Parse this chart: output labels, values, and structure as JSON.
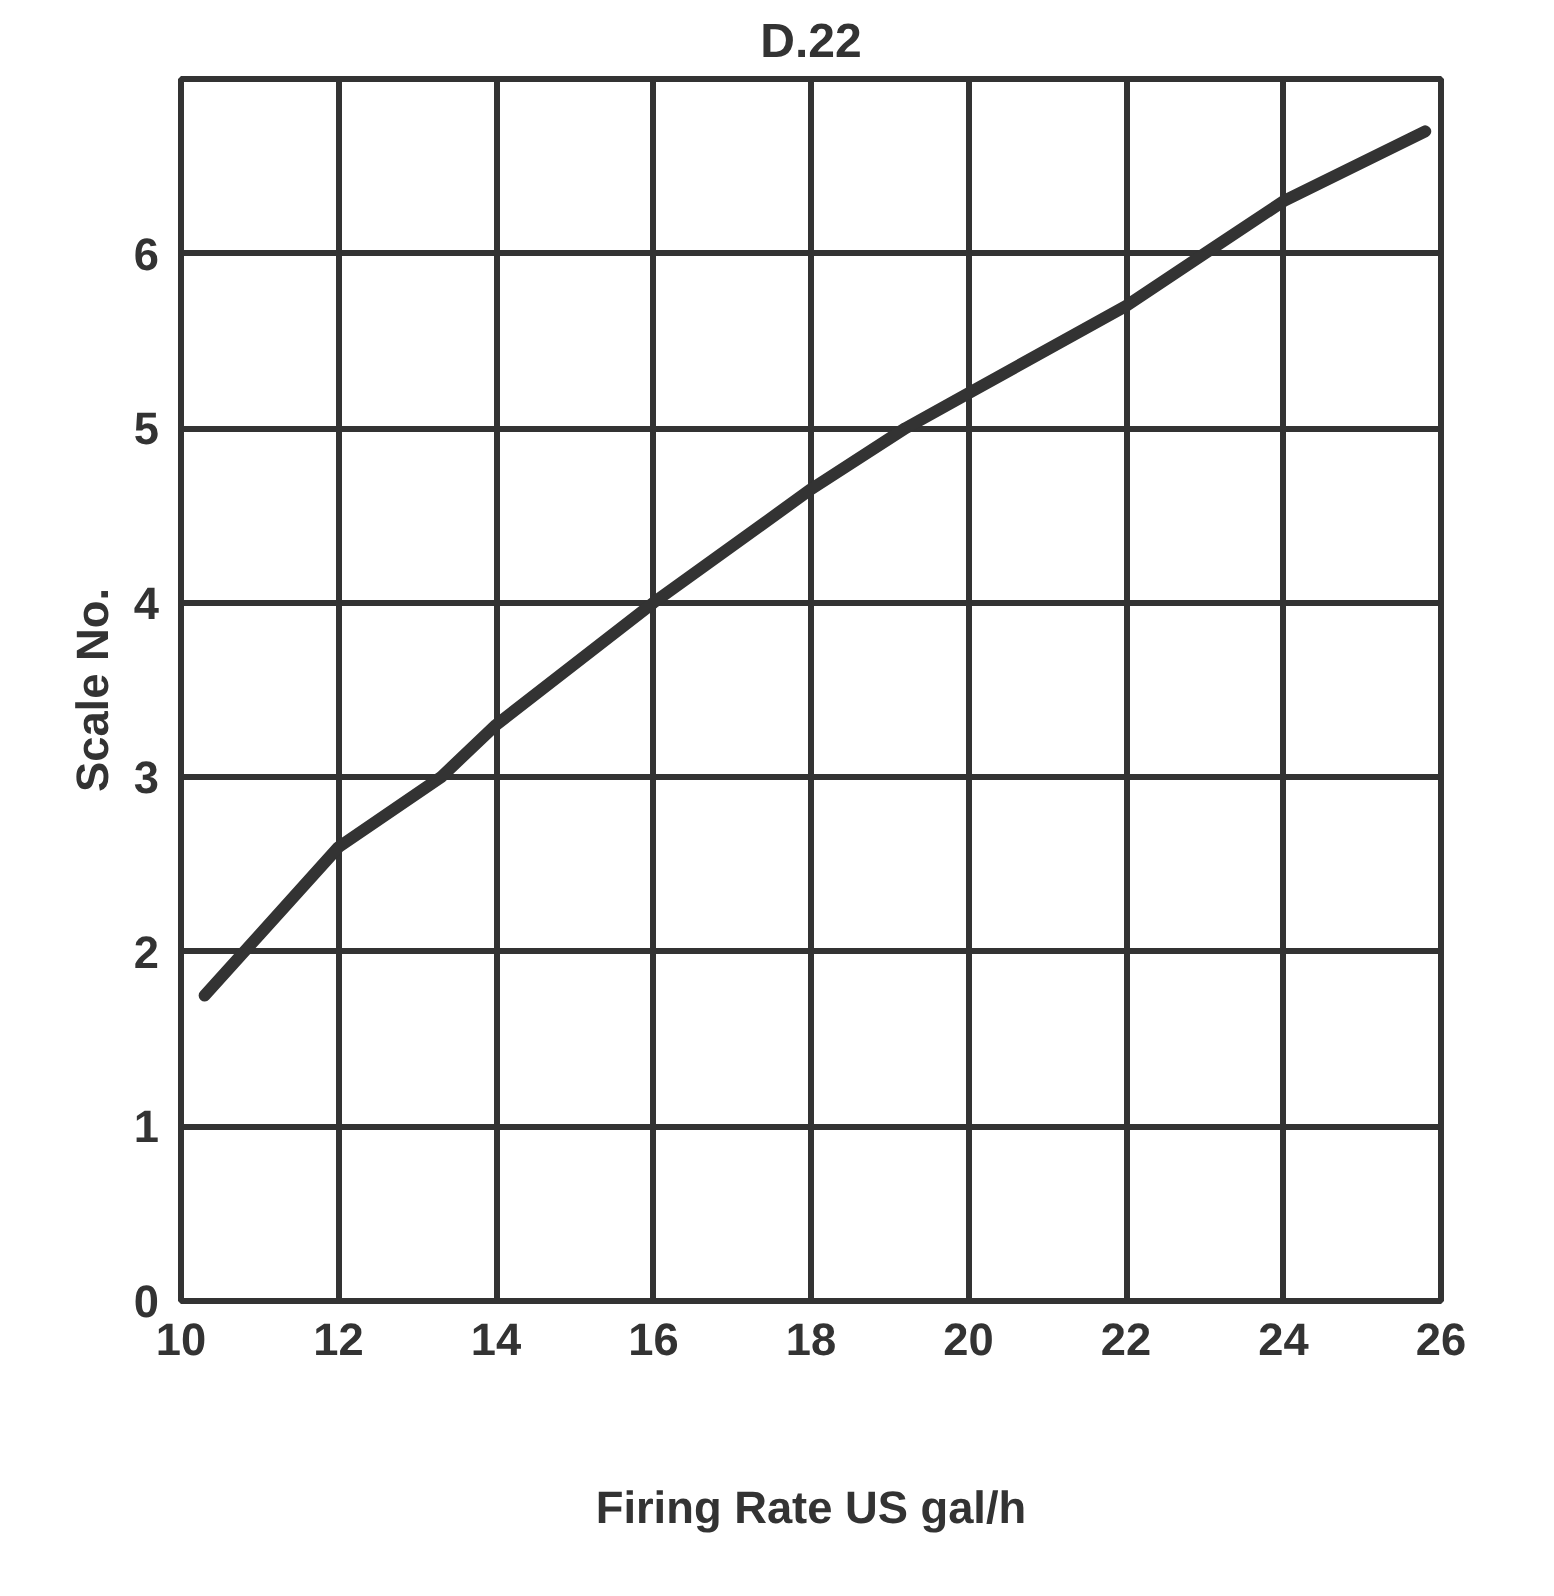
{
  "chart_data": {
    "type": "line",
    "title": "D.22",
    "xlabel": "Firing Rate US gal/h",
    "ylabel": "Scale No.",
    "x": [
      10.3,
      11,
      12,
      13.3,
      14,
      16,
      18,
      19.2,
      20,
      22,
      23,
      24,
      25.8
    ],
    "series": [
      {
        "color": "#333333",
        "values": [
          1.75,
          2.1,
          2.6,
          3.0,
          3.3,
          4.0,
          4.65,
          5.0,
          5.2,
          5.7,
          6.0,
          6.3,
          6.7
        ]
      }
    ],
    "xlim": [
      10,
      26
    ],
    "ylim": [
      0,
      7
    ],
    "xticks": [
      10,
      12,
      14,
      16,
      18,
      20,
      22,
      24,
      26
    ],
    "yticks": [
      0,
      1,
      2,
      3,
      4,
      5,
      6,
      {
        "value": 7,
        "label": null
      }
    ],
    "grid": true,
    "marker": "none",
    "line_style": "solid"
  }
}
